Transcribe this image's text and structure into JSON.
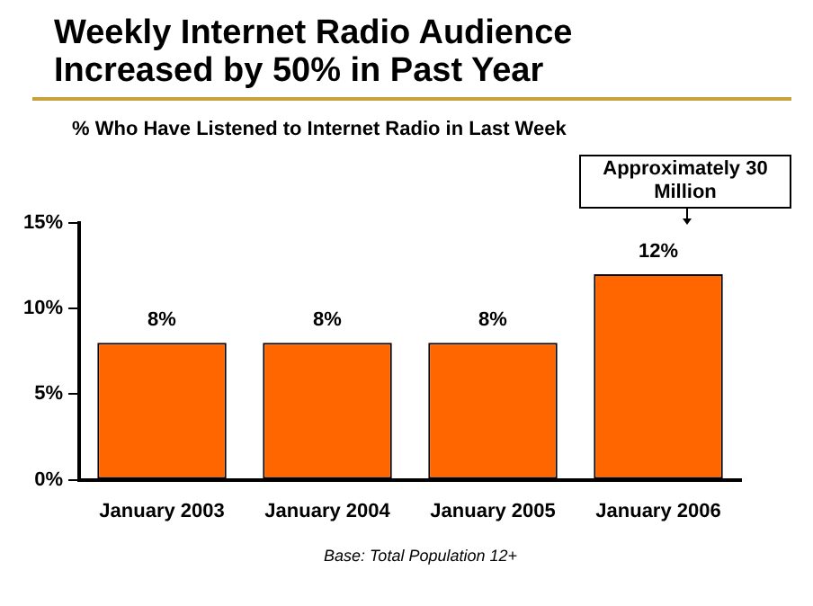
{
  "chart_data": {
    "type": "bar",
    "title": "Weekly Internet Radio Audience Increased by 50% in Past Year",
    "subtitle": "% Who Have Listened to Internet Radio in Last Week",
    "categories": [
      "January 2003",
      "January 2004",
      "January 2005",
      "January 2006"
    ],
    "values": [
      8,
      8,
      8,
      12
    ],
    "value_labels": [
      "8%",
      "8%",
      "8%",
      "12%"
    ],
    "color": "#ff6600",
    "ylim": [
      0,
      15
    ],
    "yticks": [
      {
        "value": 0,
        "label": "0%"
      },
      {
        "value": 5,
        "label": "5%"
      },
      {
        "value": 10,
        "label": "10%"
      },
      {
        "value": 15,
        "label": "15%"
      }
    ],
    "grid": false,
    "legend": false,
    "annotations": [
      "Approximately 30 Million",
      "Base:  Total Population 12+"
    ]
  }
}
